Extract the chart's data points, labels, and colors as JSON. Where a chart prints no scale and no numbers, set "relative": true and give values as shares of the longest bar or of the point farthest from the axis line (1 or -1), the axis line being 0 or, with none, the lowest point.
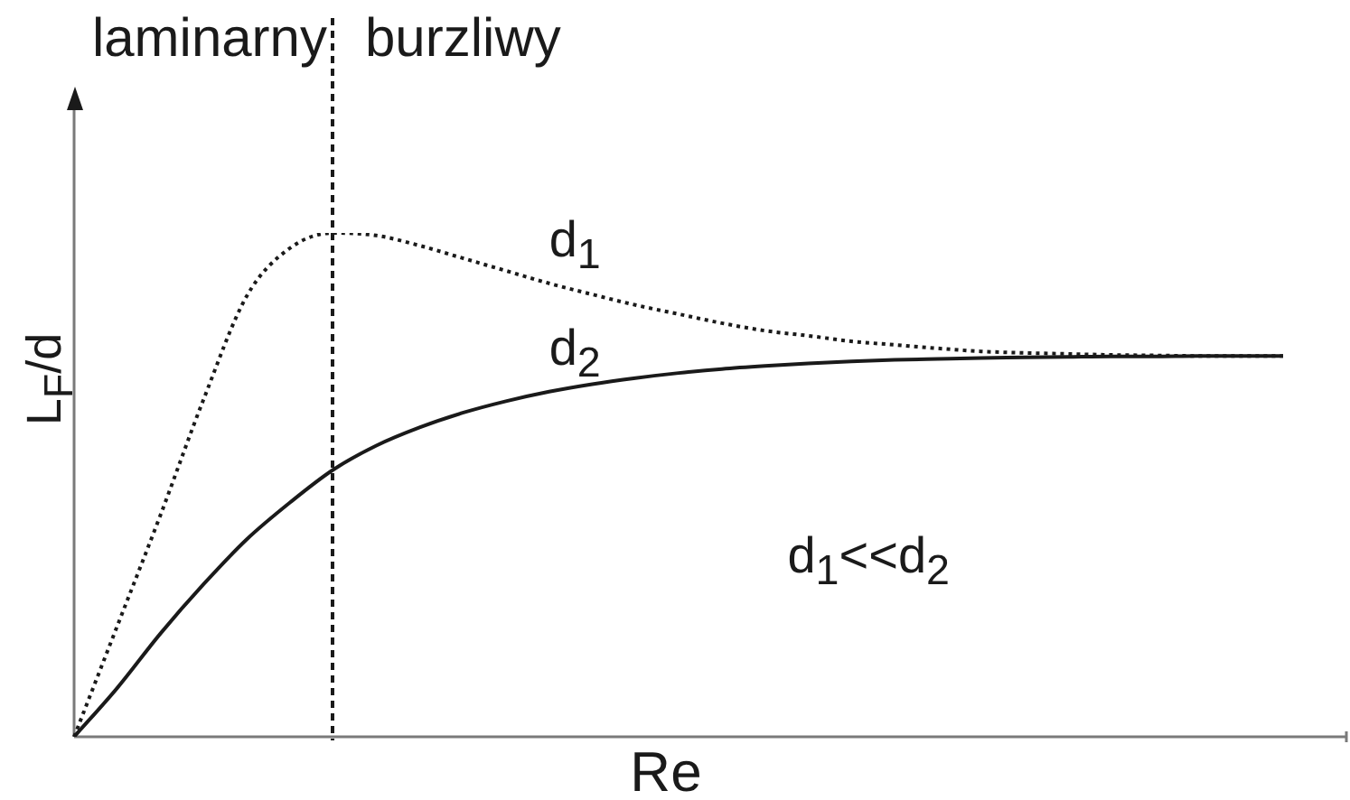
{
  "chart_data": {
    "type": "line",
    "relative": true,
    "xlabel": "Re",
    "ylabel": "L$_{F}$/d",
    "categories": [
      null,
      null,
      null,
      null,
      null,
      null,
      null,
      null,
      null,
      null,
      null,
      null,
      null,
      null,
      null,
      null,
      null,
      null,
      null,
      null,
      null,
      null,
      null,
      null,
      null,
      null,
      null,
      null,
      null
    ],
    "series": [
      {
        "name": "d$_{1}$",
        "color": "#1a1a1a",
        "line_style": "dotted",
        "values": [
          0,
          0.22,
          0.44,
          0.67,
          0.875,
          0.97,
          1,
          0.995,
          0.975,
          0.95,
          0.925,
          0.9,
          0.878,
          0.857,
          0.839,
          0.821,
          0.806,
          0.796,
          0.785,
          0.778,
          0.771,
          0.765,
          0.762,
          0.76,
          0.758,
          0.757,
          0.756,
          0.756,
          0.756
        ]
      },
      {
        "name": "d$_{2}$",
        "color": "#1a1a1a",
        "line_style": "solid",
        "values": [
          0,
          0.097,
          0.205,
          0.303,
          0.392,
          0.465,
          0.53,
          0.578,
          0.614,
          0.643,
          0.666,
          0.685,
          0.7,
          0.712,
          0.722,
          0.73,
          0.736,
          0.741,
          0.745,
          0.748,
          0.75,
          0.752,
          0.753,
          0.754,
          0.755,
          0.755,
          0.756,
          0.756,
          0.756
        ]
      }
    ],
    "annotations": [
      "laminarny",
      "burzliwy",
      "d$_{1}$<<d$_{2}$"
    ]
  }
}
